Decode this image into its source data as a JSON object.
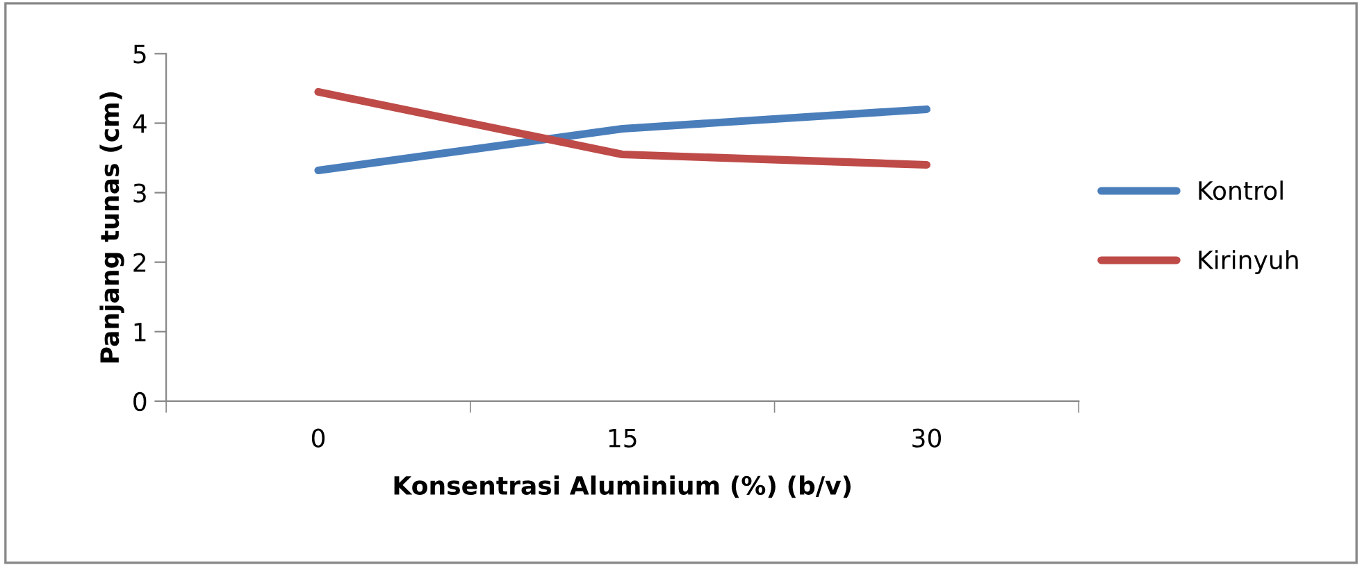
{
  "chart_data": {
    "type": "line",
    "xlabel": "Konsentrasi Aluminium (%) (b/v)",
    "ylabel": "Panjang tunas (cm)",
    "categories": [
      "0",
      "15",
      "30"
    ],
    "series": [
      {
        "name": "Kontrol",
        "color": "#4a7ebb",
        "values": [
          3.32,
          3.92,
          4.2
        ]
      },
      {
        "name": "Kirinyuh",
        "color": "#be4b48",
        "values": [
          4.45,
          3.55,
          3.4
        ]
      }
    ],
    "ylim": [
      0,
      5
    ],
    "yticks": [
      0,
      1,
      2,
      3,
      4,
      5
    ],
    "grid": false,
    "legend": "right",
    "marker": "none",
    "line_style": "solid"
  }
}
